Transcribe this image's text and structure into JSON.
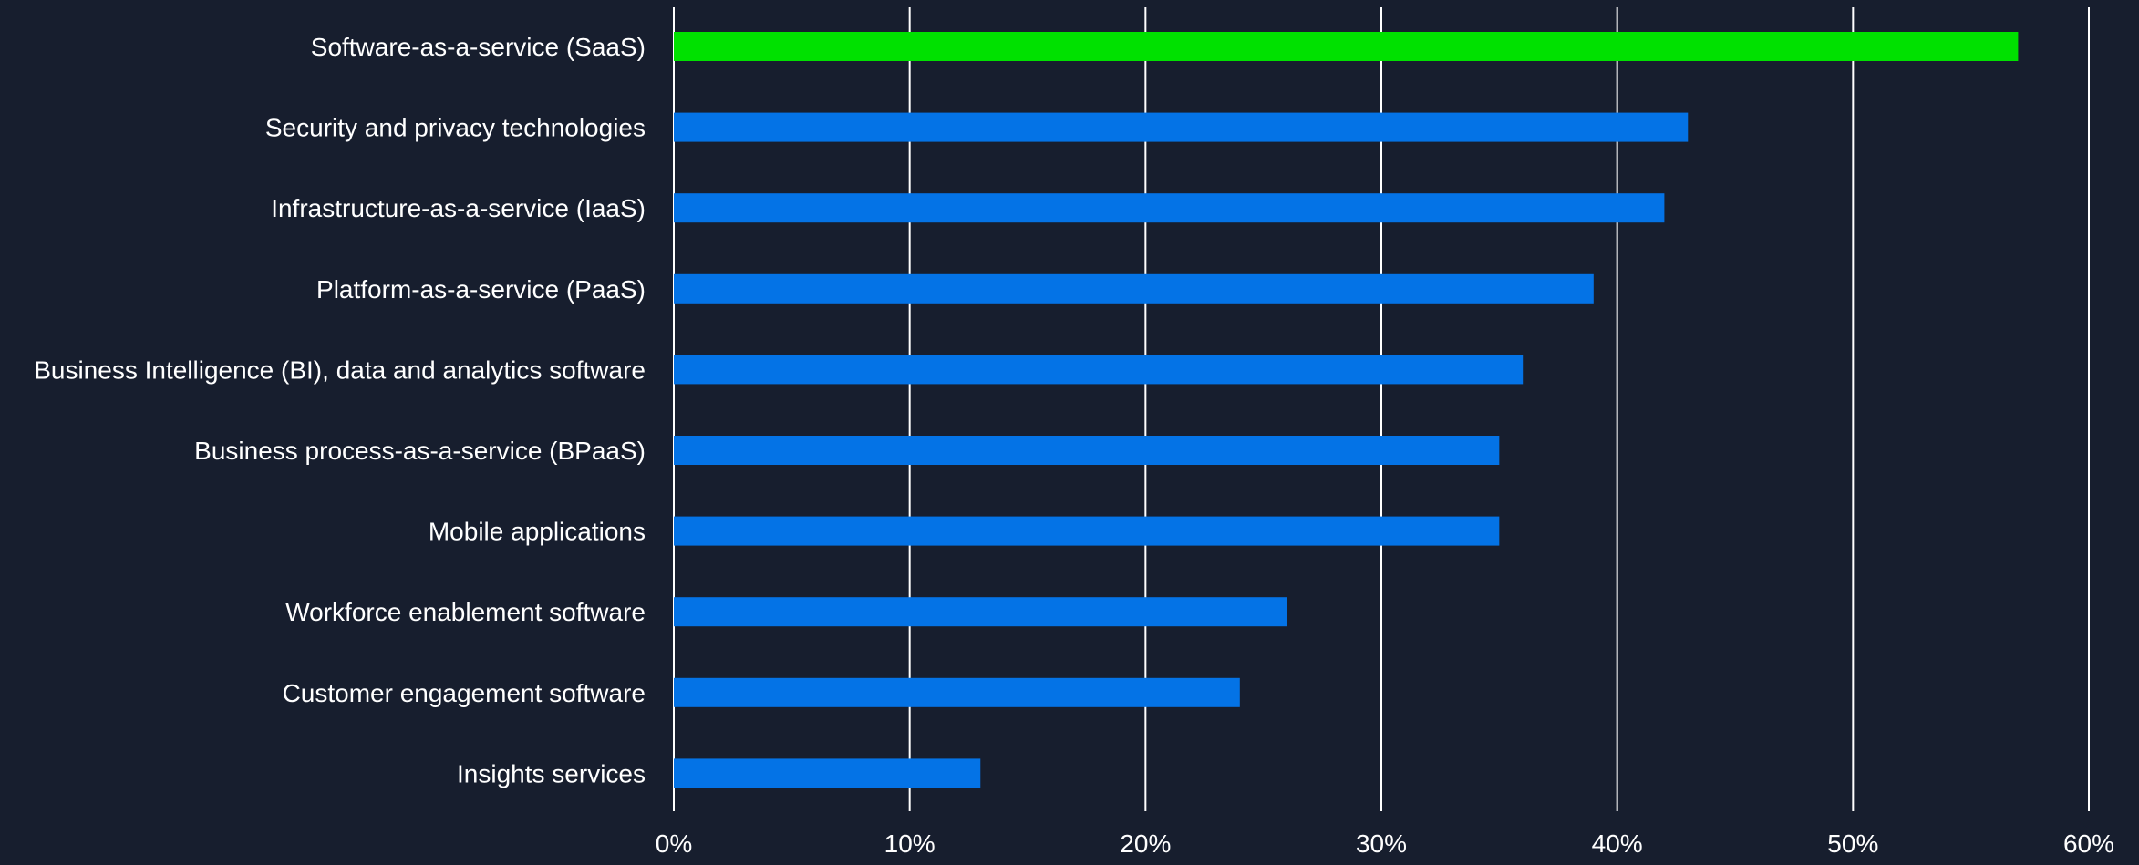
{
  "chart_data": {
    "type": "bar",
    "orientation": "horizontal",
    "categories": [
      "Software-as-a-service (SaaS)",
      "Security and privacy technologies",
      "Infrastructure-as-a-service (IaaS)",
      "Platform-as-a-service (PaaS)",
      "Business Intelligence (BI), data and analytics software",
      "Business process-as-a-service (BPaaS)",
      "Mobile applications",
      "Workforce enablement software",
      "Customer engagement software",
      "Insights services"
    ],
    "values": [
      57,
      43,
      42,
      39,
      36,
      35,
      35,
      26,
      24,
      13
    ],
    "highlight_index": 0,
    "xlim": [
      0,
      60
    ],
    "xticks": [
      0,
      10,
      20,
      30,
      40,
      50,
      60
    ],
    "xtick_labels": [
      "0%",
      "10%",
      "20%",
      "30%",
      "40%",
      "50%",
      "60%"
    ],
    "grid": true,
    "title": "",
    "xlabel": "",
    "ylabel": ""
  },
  "colors": {
    "background": "#171e2e",
    "bar": "#0473e6",
    "highlight_bar": "#00e100",
    "grid": "#ffffff",
    "text": "#ffffff"
  }
}
